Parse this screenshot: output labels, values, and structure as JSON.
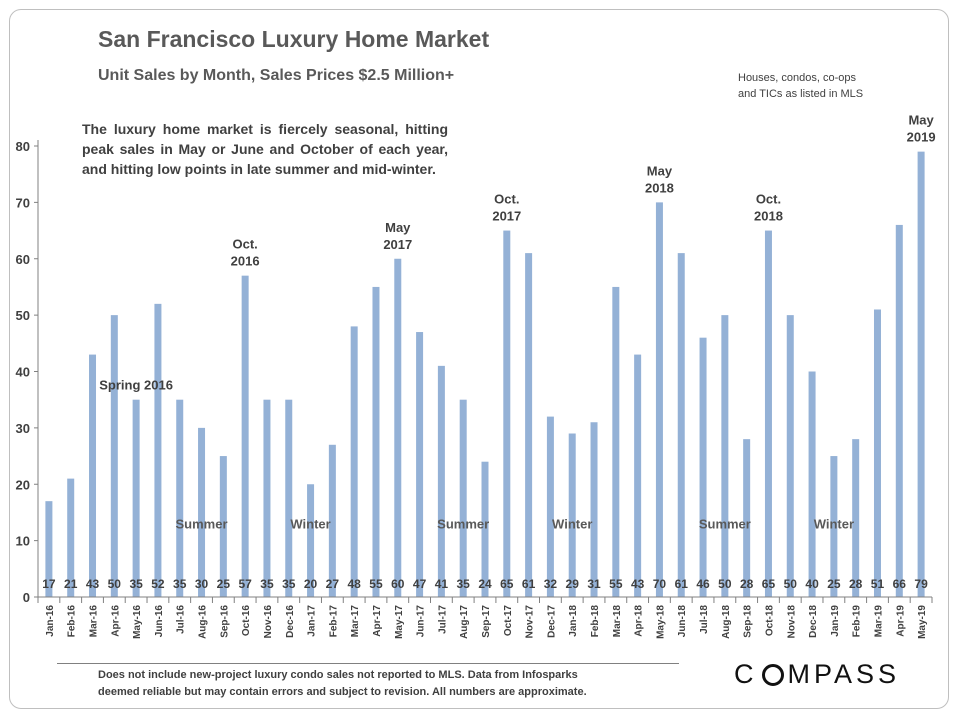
{
  "header": {
    "title": "San Francisco Luxury Home Market",
    "subtitle": "Unit Sales by Month,  Sales Prices $2.5 Million+"
  },
  "source_note": [
    "Houses, condos, co-ops",
    "and TICs as listed in MLS"
  ],
  "description": "The luxury home market is fiercely seasonal, hitting peak sales in May or June and October of each year, and hitting low points in late summer and mid-winter.",
  "footnote": [
    "Does not include new-project luxury condo sales not reported to MLS. Data from Infosparks",
    "deemed reliable but may contain errors and subject to revision.  All numbers are approximate."
  ],
  "logo": {
    "before": "C",
    "after": "MPASS"
  },
  "colors": {
    "bar": "#94B1D6",
    "text": "#404040",
    "title": "#595959",
    "axis": "#808080"
  },
  "chart_data": {
    "type": "bar",
    "title": "San Francisco Luxury Home Market",
    "xlabel": "",
    "ylabel": "",
    "ylim": [
      0,
      80
    ],
    "yticks": [
      0,
      10,
      20,
      30,
      40,
      50,
      60,
      70,
      80
    ],
    "grid": false,
    "show_data_labels": true,
    "categories": [
      "Jan-16",
      "Feb-16",
      "Mar-16",
      "Apr-16",
      "May-16",
      "Jun-16",
      "Jul-16",
      "Aug-16",
      "Sep-16",
      "Oct-16",
      "Nov-16",
      "Dec-16",
      "Jan-17",
      "Feb-17",
      "Mar-17",
      "Apr-17",
      "May-17",
      "Jun-17",
      "Jul-17",
      "Aug-17",
      "Sep-17",
      "Oct-17",
      "Nov-17",
      "Dec-17",
      "Jan-18",
      "Feb-18",
      "Mar-18",
      "Apr-18",
      "May-18",
      "Jun-18",
      "Jul-18",
      "Aug-18",
      "Sep-18",
      "Oct-18",
      "Nov-18",
      "Dec-18",
      "Jan-19",
      "Feb-19",
      "Mar-19",
      "Apr-19",
      "May-19"
    ],
    "values": [
      17,
      21,
      43,
      50,
      35,
      52,
      35,
      30,
      25,
      57,
      35,
      35,
      20,
      27,
      48,
      55,
      60,
      47,
      41,
      35,
      24,
      65,
      61,
      32,
      29,
      31,
      55,
      43,
      70,
      61,
      46,
      50,
      28,
      65,
      50,
      40,
      25,
      28,
      51,
      66,
      79
    ],
    "peak_annotations": [
      {
        "category": "May-16",
        "lines": [
          "Spring 2016"
        ]
      },
      {
        "category": "Oct-16",
        "lines": [
          "Oct.",
          "2016"
        ]
      },
      {
        "category": "May-17",
        "lines": [
          "May",
          "2017"
        ]
      },
      {
        "category": "Oct-17",
        "lines": [
          "Oct.",
          "2017"
        ]
      },
      {
        "category": "May-18",
        "lines": [
          "May",
          "2018"
        ]
      },
      {
        "category": "Oct-18",
        "lines": [
          "Oct.",
          "2018"
        ]
      },
      {
        "category": "May-19",
        "lines": [
          "May",
          "2019"
        ]
      }
    ],
    "season_labels": [
      {
        "label": "Summer",
        "category": "Aug-16"
      },
      {
        "label": "Winter",
        "category": "Jan-17"
      },
      {
        "label": "Summer",
        "category": "Aug-17"
      },
      {
        "label": "Winter",
        "category": "Jan-18"
      },
      {
        "label": "Summer",
        "category": "Aug-18"
      },
      {
        "label": "Winter",
        "category": "Jan-19"
      }
    ],
    "season_label_value": 13
  }
}
